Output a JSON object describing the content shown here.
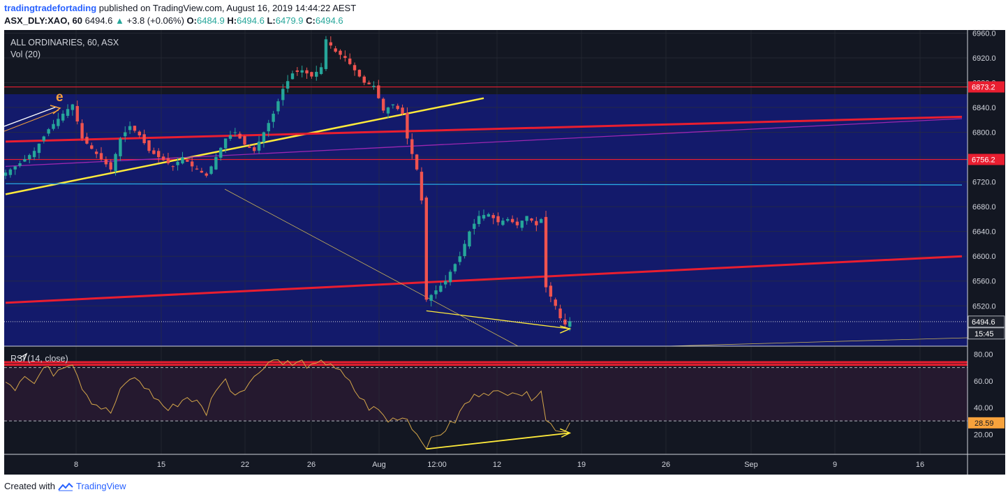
{
  "header": {
    "author": "tradingtradefortading",
    "published": "published on TradingView.com, August 16, 2019 14:44:22 AEST",
    "symbol": "ASX_DLY:XAO, 60",
    "last": "6494.6",
    "change_arrow": "▲",
    "change": "+3.8 (+0.06%)",
    "o_label": "O:",
    "o_value": "6484.9",
    "h_label": "H:",
    "h_value": "6494.6",
    "l_label": "L:",
    "l_value": "6479.9",
    "c_label": "C:",
    "c_value": "6494.6"
  },
  "main_pane": {
    "title": "ALL ORDINARIES, 60, ASX",
    "indicator": "Vol (20)",
    "annotation": "e"
  },
  "rsi_pane": {
    "title": "RSI (14, close)"
  },
  "footer": {
    "created_with": "Created with",
    "brand": "TradingView"
  },
  "colors": {
    "background": "#131722",
    "price_panel": "#131a6b",
    "up": "#26a69a",
    "down": "#ef5350",
    "trend_yellow": "#ffeb3b",
    "resistance_red": "#e91e30",
    "rsi_line": "#d4a64a",
    "accent_blue": "#2962ff"
  },
  "chart_data": [
    {
      "type": "candlestick",
      "title": "ALL ORDINARIES, 60, ASX",
      "y_ticks": [
        6960,
        6920,
        6880,
        6840,
        6800,
        6760,
        6720,
        6680,
        6640,
        6600,
        6560,
        6520
      ],
      "ylim": [
        6455,
        6965
      ],
      "x_ticks": [
        "8",
        "15",
        "22",
        "26",
        "Aug",
        "12:00",
        "12",
        "19",
        "26",
        "Sep",
        "9",
        "16"
      ],
      "price_labels": [
        {
          "value": 6873.2,
          "text": "6873.2",
          "style": "red"
        },
        {
          "value": 6756.2,
          "text": "6756.2",
          "style": "red"
        },
        {
          "value": 6494.6,
          "text": "6494.6",
          "style": "dark"
        }
      ],
      "countdown": "15:45",
      "close_path": [
        [
          0,
          6735
        ],
        [
          3,
          6750
        ],
        [
          6,
          6770
        ],
        [
          9,
          6805
        ],
        [
          12,
          6830
        ],
        [
          14,
          6845
        ],
        [
          16,
          6790
        ],
        [
          19,
          6765
        ],
        [
          22,
          6740
        ],
        [
          24,
          6790
        ],
        [
          26,
          6810
        ],
        [
          28,
          6795
        ],
        [
          30,
          6770
        ],
        [
          33,
          6755
        ],
        [
          35,
          6745
        ],
        [
          37,
          6760
        ],
        [
          39,
          6745
        ],
        [
          42,
          6730
        ],
        [
          44,
          6760
        ],
        [
          46,
          6790
        ],
        [
          48,
          6800
        ],
        [
          50,
          6780
        ],
        [
          52,
          6770
        ],
        [
          54,
          6800
        ],
        [
          56,
          6830
        ],
        [
          58,
          6870
        ],
        [
          60,
          6895
        ],
        [
          62,
          6900
        ],
        [
          64,
          6890
        ],
        [
          66,
          6905
        ],
        [
          67,
          6950
        ],
        [
          69,
          6930
        ],
        [
          71,
          6920
        ],
        [
          73,
          6900
        ],
        [
          75,
          6880
        ],
        [
          77,
          6875
        ],
        [
          79,
          6835
        ],
        [
          81,
          6845
        ],
        [
          83,
          6830
        ],
        [
          84,
          6790
        ],
        [
          86,
          6740
        ],
        [
          87,
          6690
        ],
        [
          88,
          6530
        ],
        [
          90,
          6545
        ],
        [
          92,
          6560
        ],
        [
          93,
          6575
        ],
        [
          95,
          6600
        ],
        [
          97,
          6640
        ],
        [
          99,
          6665
        ],
        [
          101,
          6668
        ],
        [
          103,
          6655
        ],
        [
          105,
          6660
        ],
        [
          107,
          6650
        ],
        [
          109,
          6665
        ],
        [
          111,
          6650
        ],
        [
          112,
          6660
        ],
        [
          113,
          6550
        ],
        [
          115,
          6520
        ],
        [
          116,
          6500
        ],
        [
          117,
          6490
        ],
        [
          118,
          6495
        ]
      ],
      "annotations": [
        {
          "type": "trendline",
          "color": "yellow",
          "from": [
            0,
            6700
          ],
          "to": [
            100,
            6855
          ]
        },
        {
          "type": "trendline",
          "color": "red",
          "from": [
            0,
            6785
          ],
          "to": [
            200,
            6825
          ]
        },
        {
          "type": "trendline",
          "color": "red",
          "from": [
            0,
            6525
          ],
          "to": [
            200,
            6600
          ]
        },
        {
          "type": "hline",
          "color": "red",
          "value": 6873.2
        },
        {
          "type": "hline",
          "color": "red",
          "value": 6756.2
        },
        {
          "type": "trendline",
          "color": "blue",
          "from": [
            0,
            6717
          ],
          "to": [
            200,
            6715
          ]
        },
        {
          "type": "trendline",
          "color": "purple",
          "from": [
            0,
            6745
          ],
          "to": [
            200,
            6822
          ]
        },
        {
          "type": "trendline",
          "color": "yellow",
          "from": [
            88,
            6512
          ],
          "to": [
            118,
            6483
          ]
        }
      ]
    },
    {
      "type": "line",
      "title": "RSI (14, close)",
      "y_ticks": [
        80,
        60,
        40,
        20
      ],
      "ylim": [
        5,
        86
      ],
      "dashed_levels": [
        70,
        30
      ],
      "last_value": 28.59,
      "last_label": "28.59",
      "series": [
        {
          "values": [
            [
              0,
              62
            ],
            [
              2,
              55
            ],
            [
              4,
              66
            ],
            [
              6,
              58
            ],
            [
              8,
              70
            ],
            [
              10,
              66
            ],
            [
              12,
              72
            ],
            [
              14,
              74
            ],
            [
              16,
              56
            ],
            [
              18,
              45
            ],
            [
              20,
              40
            ],
            [
              22,
              36
            ],
            [
              24,
              52
            ],
            [
              26,
              62
            ],
            [
              28,
              60
            ],
            [
              30,
              52
            ],
            [
              32,
              45
            ],
            [
              34,
              38
            ],
            [
              36,
              43
            ],
            [
              38,
              48
            ],
            [
              40,
              44
            ],
            [
              42,
              36
            ],
            [
              44,
              55
            ],
            [
              46,
              60
            ],
            [
              48,
              50
            ],
            [
              50,
              56
            ],
            [
              52,
              62
            ],
            [
              54,
              72
            ],
            [
              56,
              76
            ],
            [
              58,
              75
            ],
            [
              60,
              72
            ],
            [
              62,
              74
            ],
            [
              64,
              70
            ],
            [
              66,
              73
            ],
            [
              68,
              74
            ],
            [
              70,
              66
            ],
            [
              72,
              58
            ],
            [
              74,
              48
            ],
            [
              76,
              40
            ],
            [
              78,
              38
            ],
            [
              80,
              30
            ],
            [
              82,
              33
            ],
            [
              84,
              32
            ],
            [
              86,
              20
            ],
            [
              88,
              12
            ],
            [
              90,
              18
            ],
            [
              92,
              24
            ],
            [
              94,
              30
            ],
            [
              96,
              42
            ],
            [
              98,
              48
            ],
            [
              100,
              53
            ],
            [
              102,
              51
            ],
            [
              104,
              50
            ],
            [
              106,
              54
            ],
            [
              108,
              50
            ],
            [
              110,
              48
            ],
            [
              112,
              54
            ],
            [
              113,
              30
            ],
            [
              115,
              25
            ],
            [
              117,
              22
            ],
            [
              118,
              28.59
            ]
          ]
        }
      ],
      "annotations": [
        {
          "type": "trendline",
          "color": "yellow",
          "from": [
            88,
            9
          ],
          "to": [
            118,
            21
          ]
        }
      ]
    }
  ]
}
